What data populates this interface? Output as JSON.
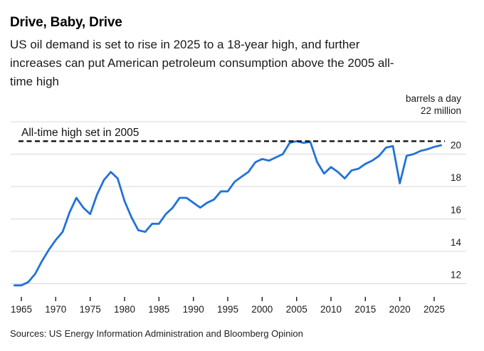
{
  "title": "Drive, Baby, Drive",
  "subtitle_lines": [
    "US oil demand is set to rise in 2025 to a 18-year high, and further",
    "increases can put American petroleum consumption above the 2005 all-",
    "time high"
  ],
  "source_note": "Sources: US Energy Information Administration and Bloomberg Opinion",
  "colors": {
    "line": "#2272d8",
    "dashed": "#121212",
    "grid": "#d8d8d8",
    "text": "#1a1a1a"
  },
  "chart_data": {
    "type": "line",
    "title": "Drive, Baby, Drive",
    "ylabel": "barrels a day, million",
    "y_unit_caption": "barrels a day",
    "y_top_label": "22 million",
    "xlim": [
      1964,
      2026
    ],
    "ylim": [
      11.5,
      22
    ],
    "grid": "horizontal",
    "legend": "none",
    "x_ticks": [
      1965,
      1970,
      1975,
      1980,
      1985,
      1990,
      1995,
      2000,
      2005,
      2010,
      2015,
      2020,
      2025
    ],
    "y_gridlines": [
      12,
      14,
      16,
      18,
      20,
      22
    ],
    "y_tick_labels": [
      12,
      14,
      16,
      18,
      20
    ],
    "annotation": {
      "label": "All-time high set in 2005",
      "value": 20.8
    },
    "series": [
      {
        "name": "US oil demand (million barrels a day)",
        "x": [
          1964,
          1965,
          1966,
          1967,
          1968,
          1969,
          1970,
          1971,
          1972,
          1973,
          1974,
          1975,
          1976,
          1977,
          1978,
          1979,
          1980,
          1981,
          1982,
          1983,
          1984,
          1985,
          1986,
          1987,
          1988,
          1989,
          1990,
          1991,
          1992,
          1993,
          1994,
          1995,
          1996,
          1997,
          1998,
          1999,
          2000,
          2001,
          2002,
          2003,
          2004,
          2005,
          2006,
          2007,
          2008,
          2009,
          2010,
          2011,
          2012,
          2013,
          2014,
          2015,
          2016,
          2017,
          2018,
          2019,
          2020,
          2021,
          2022,
          2023,
          2024,
          2025,
          2026
        ],
        "values": [
          11.9,
          11.9,
          12.1,
          12.6,
          13.4,
          14.1,
          14.7,
          15.2,
          16.4,
          17.3,
          16.7,
          16.3,
          17.5,
          18.4,
          18.9,
          18.5,
          17.1,
          16.1,
          15.3,
          15.2,
          15.7,
          15.7,
          16.3,
          16.7,
          17.3,
          17.3,
          17.0,
          16.7,
          17.0,
          17.2,
          17.7,
          17.7,
          18.3,
          18.6,
          18.9,
          19.5,
          19.7,
          19.6,
          19.8,
          20.0,
          20.7,
          20.8,
          20.7,
          20.75,
          19.5,
          18.8,
          19.2,
          18.9,
          18.5,
          19.0,
          19.1,
          19.4,
          19.6,
          19.9,
          20.4,
          20.5,
          18.2,
          19.9,
          20.0,
          20.2,
          20.3,
          20.45,
          20.55
        ]
      }
    ]
  }
}
